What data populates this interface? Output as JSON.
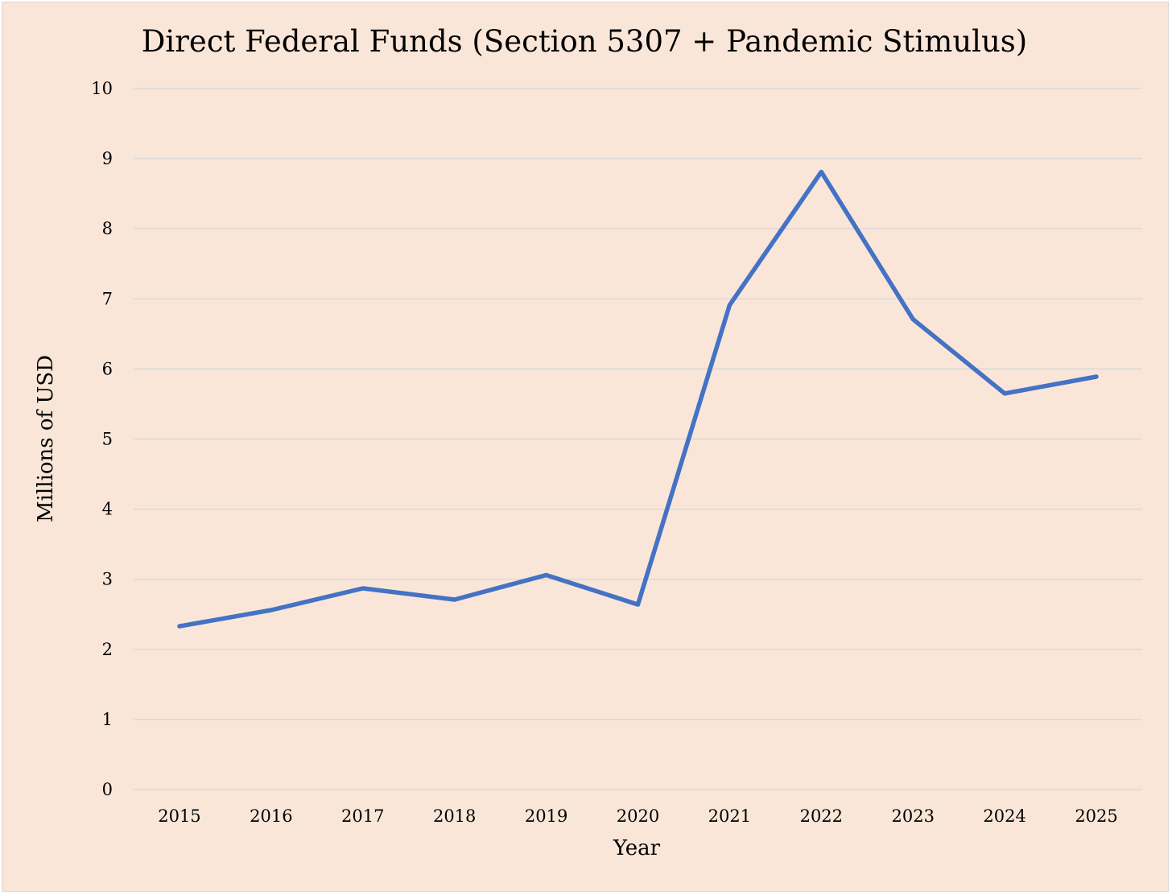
{
  "chart_data": {
    "type": "line",
    "title": "Direct Federal Funds (Section 5307 + Pandemic Stimulus)",
    "xlabel": "Year",
    "ylabel": "Millions of USD",
    "categories": [
      "2015",
      "2016",
      "2017",
      "2018",
      "2019",
      "2020",
      "2021",
      "2022",
      "2023",
      "2024",
      "2025"
    ],
    "series": [
      {
        "values": [
          2.33,
          2.56,
          2.87,
          2.71,
          3.06,
          2.64,
          6.91,
          8.81,
          6.71,
          5.65,
          5.89
        ],
        "color": "#4472c4"
      }
    ],
    "ylim": [
      0,
      10
    ],
    "yticks": [
      "0",
      "1",
      "2",
      "3",
      "4",
      "5",
      "6",
      "7",
      "8",
      "9",
      "10"
    ],
    "grid": true,
    "legend": "none",
    "background": "#fae6d9"
  }
}
